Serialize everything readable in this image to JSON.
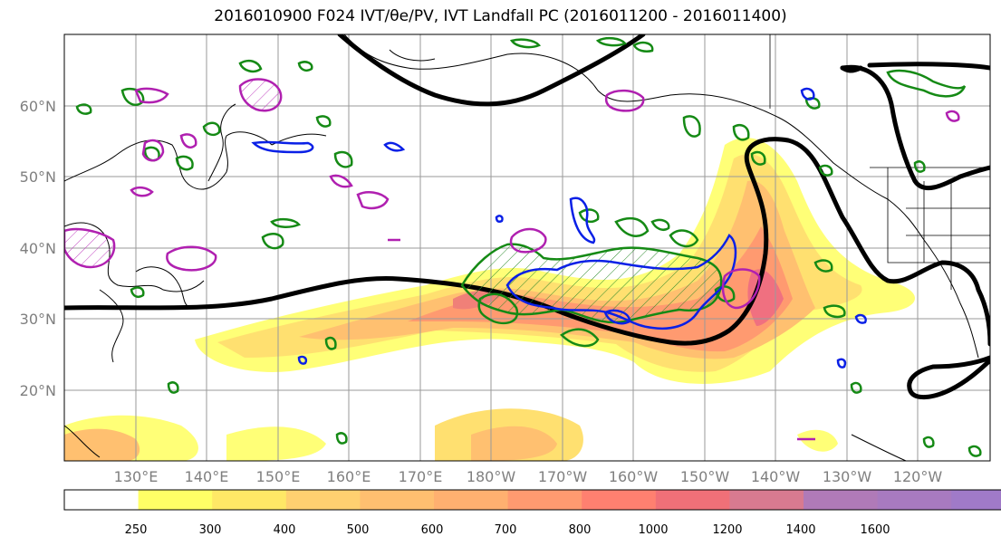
{
  "title": "2016010900 F024 IVT/θe/PV, IVT Landfall PC (2016011200 - 2016011400)",
  "map": {
    "lat_labels": [
      "60°N",
      "50°N",
      "40°N",
      "30°N",
      "20°N"
    ],
    "lon_labels": [
      "130°E",
      "140°E",
      "150°E",
      "160°E",
      "170°E",
      "180°W",
      "170°W",
      "160°W",
      "150°W",
      "140°W",
      "130°W",
      "120°W"
    ]
  },
  "colorbar": {
    "ticks": [
      "250",
      "300",
      "400",
      "500",
      "600",
      "700",
      "800",
      "1000",
      "1200",
      "1400",
      "1600"
    ],
    "colors": [
      "#ffffff",
      "#ffff66",
      "#ffe866",
      "#ffd070",
      "#ffbf70",
      "#ffb070",
      "#ff9a70",
      "#ff8070",
      "#f07078",
      "#d87a90",
      "#b07ab8",
      "#a87ac0",
      "#a07ac8"
    ]
  }
}
